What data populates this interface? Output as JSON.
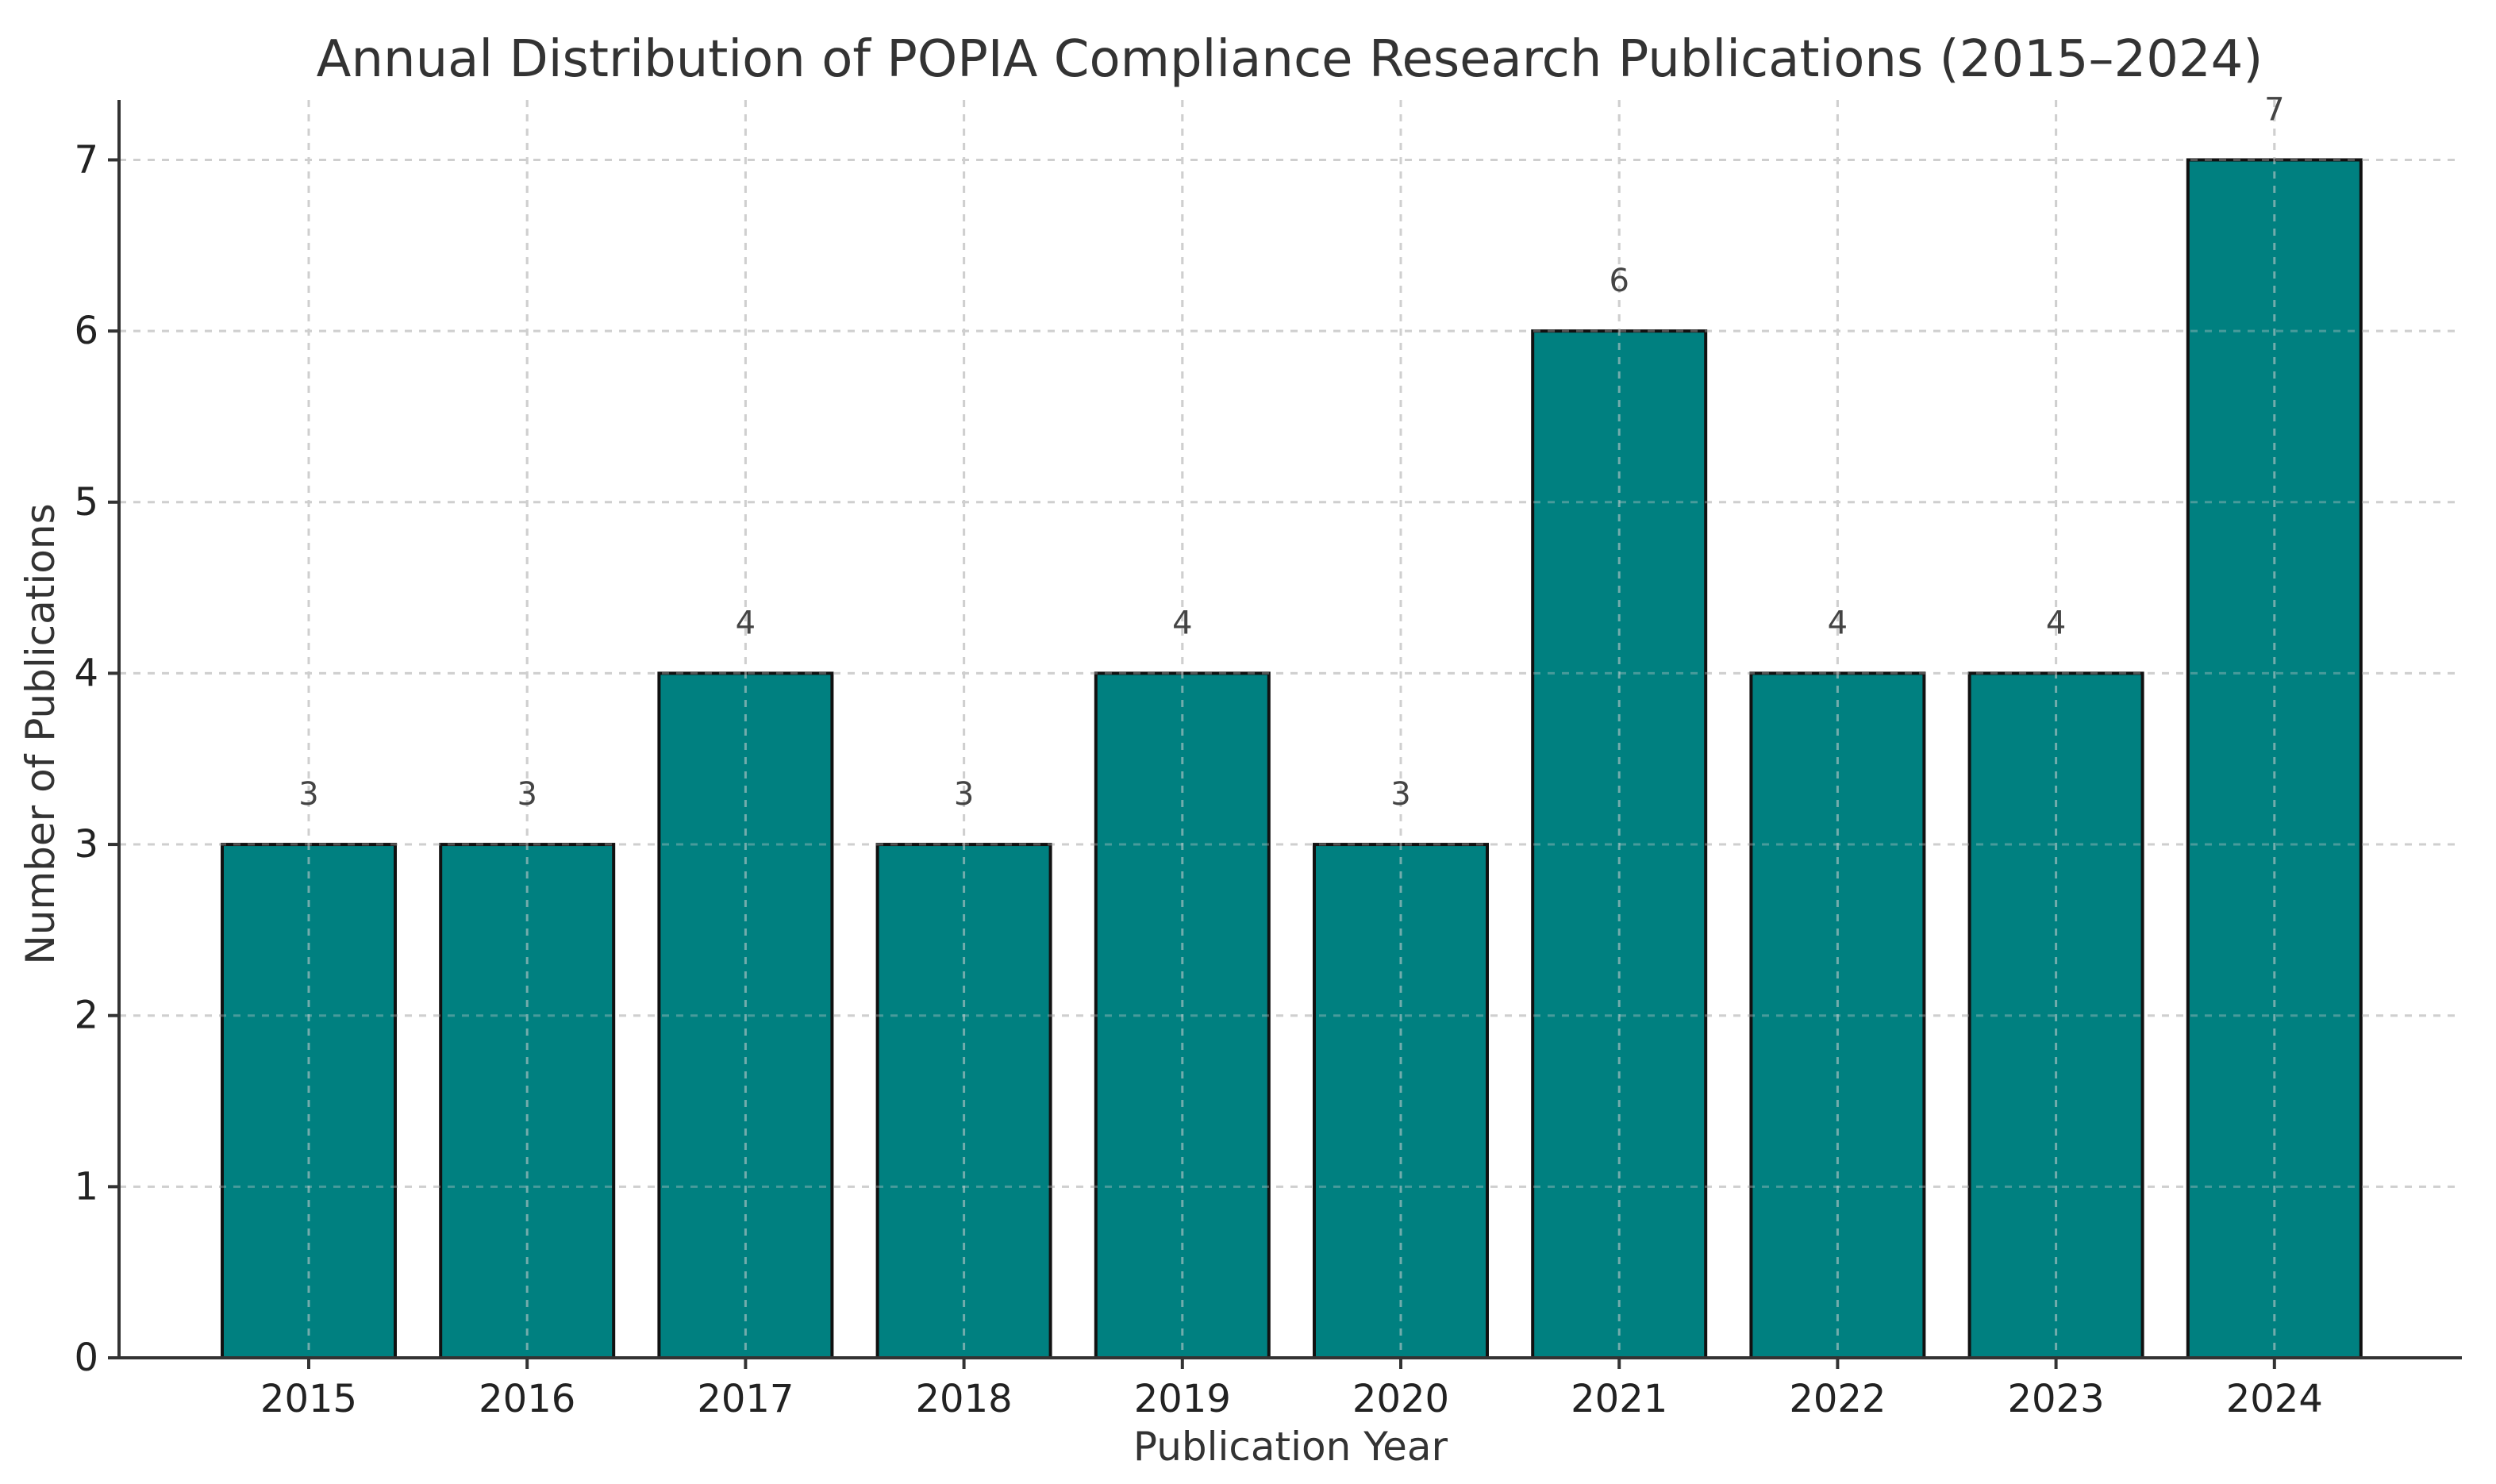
{
  "chart_data": {
    "type": "bar",
    "title": "Annual Distribution of POPIA Compliance Research Publications (2015–2024)",
    "xlabel": "Publication Year",
    "ylabel": "Number of Publications",
    "categories": [
      "2015",
      "2016",
      "2017",
      "2018",
      "2019",
      "2020",
      "2021",
      "2022",
      "2023",
      "2024"
    ],
    "values": [
      3,
      3,
      4,
      3,
      4,
      3,
      6,
      4,
      4,
      7
    ],
    "data_labels": [
      "3",
      "3",
      "4",
      "3",
      "4",
      "3",
      "6",
      "4",
      "4",
      "7"
    ],
    "ylim": [
      0,
      7.35
    ],
    "yticks": [
      0,
      1,
      2,
      3,
      4,
      5,
      6,
      7
    ],
    "grid": true,
    "legend": "none",
    "bar_color": "#008080",
    "bar_edge_color": "#111111"
  }
}
